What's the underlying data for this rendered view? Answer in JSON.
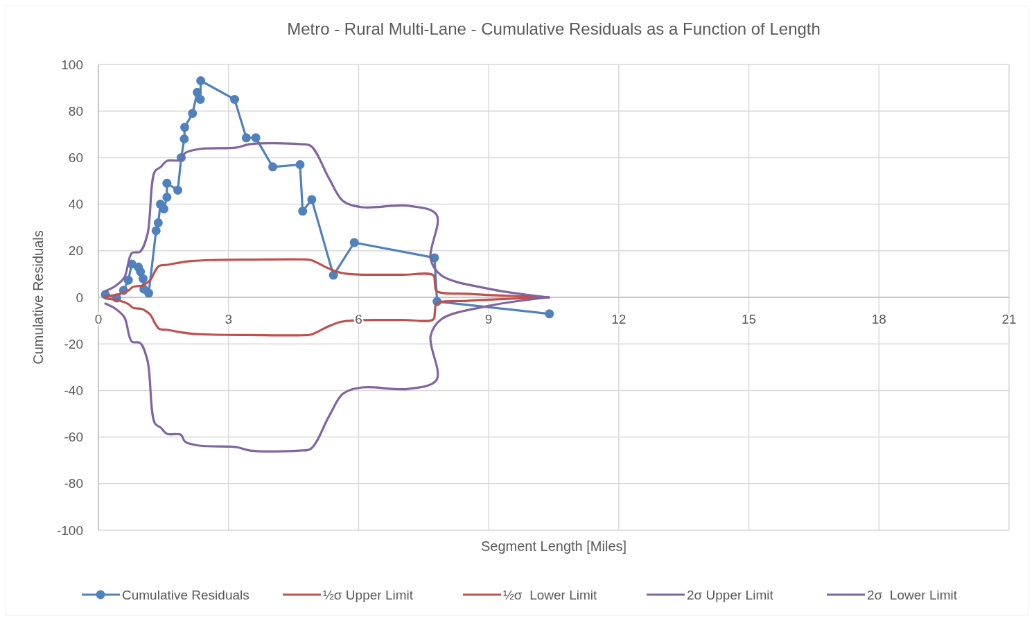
{
  "chart_data": {
    "type": "line",
    "title": "Metro - Rural Multi-Lane - Cumulative Residuals as a Function of Length",
    "xlabel": "Segment Length [Miles]",
    "ylabel": "Cumulative Residuals",
    "xlim": [
      0,
      21
    ],
    "xticks": [
      0,
      3,
      6,
      9,
      12,
      15,
      18,
      21
    ],
    "ylim": [
      -100,
      100
    ],
    "yticks": [
      -100,
      -80,
      -60,
      -40,
      -20,
      0,
      20,
      40,
      60,
      80,
      100
    ],
    "grid": true,
    "legend": "bottom",
    "marker": "circle",
    "line_style": "solid",
    "series": [
      {
        "name": "Cumulative Residuals",
        "color": "#4f81bd",
        "x": [
          0.16,
          0.42,
          0.58,
          0.69,
          0.77,
          0.92,
          0.97,
          1.03,
          1.05,
          1.16,
          1.33,
          1.38,
          1.43,
          1.51,
          1.58,
          1.58,
          1.83,
          1.91,
          1.98,
          1.99,
          2.17,
          2.28,
          2.35,
          2.36,
          3.14,
          3.41,
          3.63,
          4.02,
          4.65,
          4.71,
          4.92,
          5.42,
          5.9,
          7.75,
          7.81,
          10.4
        ],
        "values": [
          1.2,
          -0.3,
          3,
          7.4,
          14.3,
          13,
          11,
          8,
          3.5,
          1.8,
          28.6,
          32,
          40,
          38,
          43,
          49,
          46,
          60,
          68,
          73,
          79,
          88,
          85,
          93,
          85,
          68.5,
          68.5,
          56,
          57,
          37,
          42,
          9.5,
          23.5,
          17,
          -1.8,
          -7.1
        ]
      },
      {
        "name": "½σ Upper Limit",
        "color": "#c0504d",
        "marker": "none",
        "x": [
          0.16,
          0.5,
          0.7,
          0.8,
          1.0,
          1.1,
          1.2,
          1.3,
          1.4,
          1.6,
          1.9,
          2.1,
          2.6,
          3.5,
          4.7,
          4.9,
          5.3,
          5.6,
          6.0,
          7.0,
          7.72,
          7.76,
          7.8,
          8.5,
          9.0,
          10.39
        ],
        "values": [
          0.5,
          1.5,
          3,
          4.5,
          5,
          6,
          7.5,
          11,
          13.5,
          14,
          15,
          15.5,
          16,
          16.2,
          16.3,
          16,
          12.5,
          10.5,
          9.8,
          9.7,
          9.5,
          6,
          2.7,
          1.5,
          1,
          0
        ]
      },
      {
        "name": "½σ  Lower Limit",
        "color": "#c0504d",
        "marker": "none",
        "x": [
          0.16,
          0.5,
          0.7,
          0.8,
          1.0,
          1.1,
          1.2,
          1.3,
          1.4,
          1.6,
          1.9,
          2.1,
          2.6,
          3.5,
          4.7,
          4.9,
          5.3,
          5.6,
          6.0,
          7.0,
          7.72,
          7.76,
          7.8,
          8.5,
          9.0,
          10.39
        ],
        "values": [
          -0.5,
          -1.5,
          -3,
          -4.5,
          -5,
          -6,
          -7.5,
          -11,
          -13.5,
          -14,
          -15,
          -15.5,
          -16,
          -16.2,
          -16.3,
          -16,
          -12.5,
          -10.5,
          -9.8,
          -9.7,
          -9.5,
          -6,
          -2.7,
          -1.5,
          -1,
          0
        ]
      },
      {
        "name": "2σ Upper Limit",
        "color": "#8064a2",
        "marker": "none",
        "x": [
          0.16,
          0.4,
          0.6,
          0.77,
          0.96,
          1.13,
          1.3,
          1.44,
          1.58,
          1.9,
          2.0,
          2.33,
          3.18,
          3.5,
          4.63,
          4.9,
          5.32,
          5.64,
          6.08,
          7.15,
          7.8,
          7.66,
          7.9,
          9.02,
          10.39
        ],
        "values": [
          2.7,
          5,
          8.6,
          19,
          19.6,
          27,
          54,
          56,
          58.6,
          59,
          62,
          63.7,
          64.3,
          65.8,
          65.8,
          65,
          51,
          41.4,
          38.7,
          39.3,
          35.4,
          16.7,
          9.5,
          3.6,
          0
        ]
      },
      {
        "name": "2σ  Lower Limit",
        "color": "#8064a2",
        "marker": "none",
        "x": [
          0.16,
          0.4,
          0.6,
          0.77,
          0.96,
          1.13,
          1.3,
          1.44,
          1.58,
          1.9,
          2.0,
          2.33,
          3.18,
          3.5,
          4.63,
          4.9,
          5.32,
          5.64,
          6.08,
          7.15,
          7.8,
          7.66,
          7.9,
          9.02,
          10.39
        ],
        "values": [
          -2.7,
          -5,
          -8.6,
          -19,
          -19.6,
          -27,
          -54,
          -56,
          -58.6,
          -59,
          -62,
          -63.7,
          -64.3,
          -65.8,
          -65.8,
          -65,
          -51,
          -41.4,
          -38.7,
          -39.3,
          -35.4,
          -16.7,
          -9.5,
          -3.6,
          0
        ]
      }
    ]
  }
}
